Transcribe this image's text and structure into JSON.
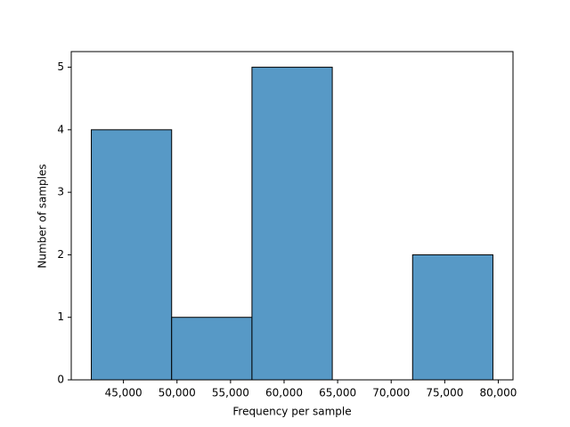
{
  "chart_data": {
    "type": "histogram",
    "xlabel": "Frequency per sample",
    "ylabel": "Number of samples",
    "bins": [
      42000,
      49500,
      57000,
      64500,
      72000,
      79500
    ],
    "values": [
      4,
      1,
      5,
      0,
      2
    ],
    "color": "#5799c6",
    "edgecolor": "#000000",
    "xlim": [
      40125,
      81375
    ],
    "ylim": [
      0,
      5.25
    ],
    "xticks": [
      {
        "value": 45000,
        "label": "45,000"
      },
      {
        "value": 50000,
        "label": "50,000"
      },
      {
        "value": 55000,
        "label": "55,000"
      },
      {
        "value": 60000,
        "label": "60,000"
      },
      {
        "value": 65000,
        "label": "65,000"
      },
      {
        "value": 70000,
        "label": "70,000"
      },
      {
        "value": 75000,
        "label": "75,000"
      },
      {
        "value": 80000,
        "label": "80,000"
      }
    ],
    "yticks": [
      0,
      1,
      2,
      3,
      4,
      5
    ],
    "grid": false
  }
}
